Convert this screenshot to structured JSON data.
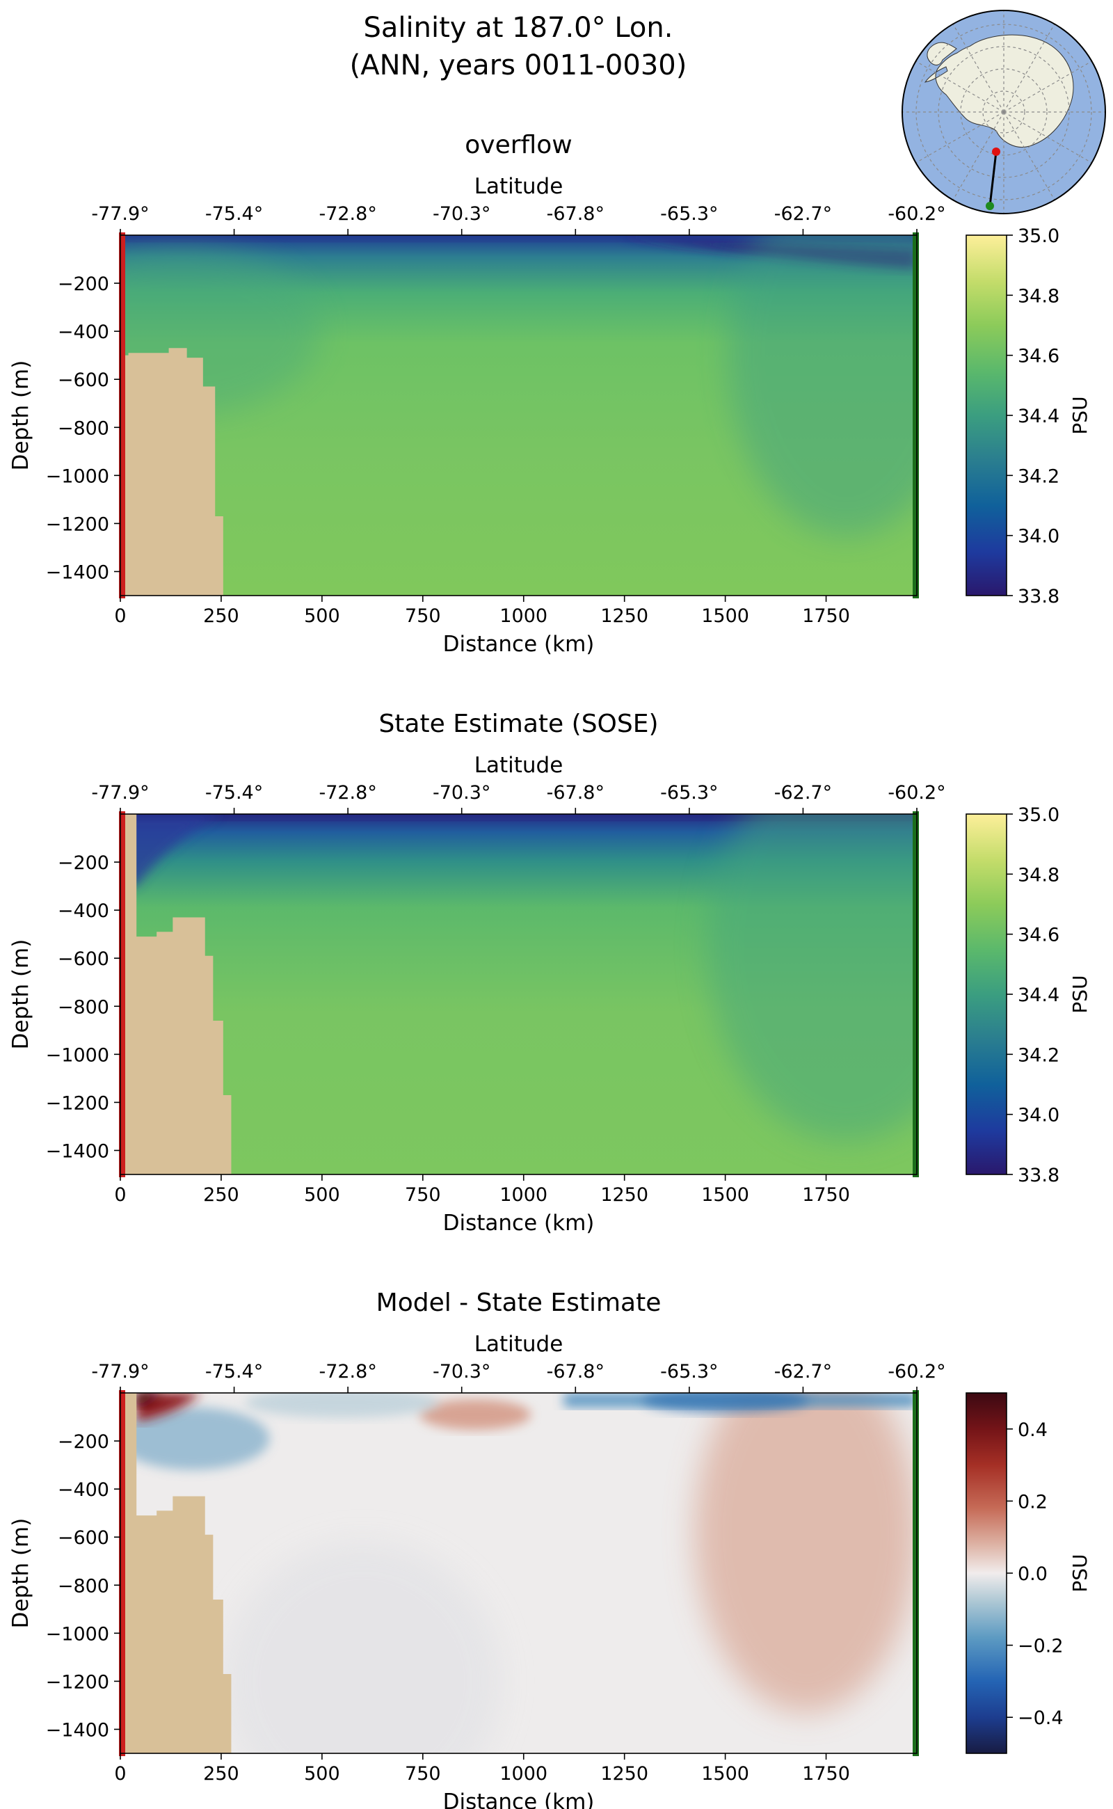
{
  "figure": {
    "title_line1": "Salinity at 187.0° Lon.",
    "title_line2": "(ANN, years 0011-0030)"
  },
  "colors": {
    "bathymetry": "#d8c098",
    "south_marker": "#cc1f1f",
    "north_marker": "#1b6e1b",
    "ocean_map": "#93b3e1",
    "land_map": "#eeeedf"
  },
  "chart_data": [
    {
      "type": "heatmap",
      "title": "overflow",
      "xlabel": "Distance (km)",
      "ylabel": "Depth (m)",
      "top_xlabel": "Latitude",
      "xlim": [
        0,
        1975
      ],
      "ylim": [
        -1500,
        0
      ],
      "xticks": [
        0,
        250,
        500,
        750,
        1000,
        1250,
        1500,
        1750
      ],
      "yticks": [
        -200,
        -400,
        -600,
        -800,
        -1000,
        -1200,
        -1400
      ],
      "lat_ticks": [
        "-77.9°",
        "-75.4°",
        "-72.8°",
        "-70.3°",
        "-67.8°",
        "-65.3°",
        "-62.7°",
        "-60.2°"
      ],
      "colorbar": {
        "label": "PSU",
        "colormap": "haline",
        "vmin": 33.8,
        "vmax": 35.0,
        "ticks": [
          "33.8",
          "34.0",
          "34.2",
          "34.4",
          "34.6",
          "34.8",
          "35.0"
        ]
      },
      "bathymetry": [
        [
          0,
          500
        ],
        [
          20,
          490
        ],
        [
          120,
          470
        ],
        [
          165,
          510
        ],
        [
          205,
          630
        ],
        [
          235,
          1170
        ],
        [
          255,
          1500
        ]
      ],
      "field_summary": "surface layer 33.8-34.2 PSU, freshest in the north at 1300-1975 km; interior 34.6-34.65 PSU"
    },
    {
      "type": "heatmap",
      "title": "State Estimate (SOSE)",
      "xlabel": "Distance (km)",
      "ylabel": "Depth (m)",
      "top_xlabel": "Latitude",
      "xlim": [
        0,
        1975
      ],
      "ylim": [
        -1500,
        0
      ],
      "xticks": [
        0,
        250,
        500,
        750,
        1000,
        1250,
        1500,
        1750
      ],
      "yticks": [
        -200,
        -400,
        -600,
        -800,
        -1000,
        -1200,
        -1400
      ],
      "lat_ticks": [
        "-77.9°",
        "-75.4°",
        "-72.8°",
        "-70.3°",
        "-67.8°",
        "-65.3°",
        "-62.7°",
        "-60.2°"
      ],
      "colorbar": {
        "label": "PSU",
        "colormap": "haline",
        "vmin": 33.8,
        "vmax": 35.0,
        "ticks": [
          "33.8",
          "34.0",
          "34.2",
          "34.4",
          "34.6",
          "34.8",
          "35.0"
        ]
      },
      "bathymetry": [
        [
          0,
          0
        ],
        [
          40,
          510
        ],
        [
          90,
          490
        ],
        [
          130,
          430
        ],
        [
          210,
          590
        ],
        [
          230,
          860
        ],
        [
          255,
          1170
        ],
        [
          275,
          1500
        ]
      ],
      "field_summary": "surface layer 33.8-34.3 PSU; interior 34.6-34.7 PSU"
    },
    {
      "type": "heatmap",
      "title": "Model - State Estimate",
      "xlabel": "Distance (km)",
      "ylabel": "Depth (m)",
      "top_xlabel": "Latitude",
      "xlim": [
        0,
        1975
      ],
      "ylim": [
        -1500,
        0
      ],
      "xticks": [
        0,
        250,
        500,
        750,
        1000,
        1250,
        1500,
        1750
      ],
      "yticks": [
        -200,
        -400,
        -600,
        -800,
        -1000,
        -1200,
        -1400
      ],
      "lat_ticks": [
        "-77.9°",
        "-75.4°",
        "-72.8°",
        "-70.3°",
        "-67.8°",
        "-65.3°",
        "-62.7°",
        "-60.2°"
      ],
      "colorbar": {
        "label": "PSU",
        "colormap": "balance",
        "vmin": -0.5,
        "vmax": 0.5,
        "ticks": [
          "−0.4",
          "−0.2",
          "0.0",
          "0.2",
          "0.4"
        ]
      },
      "bathymetry": [
        [
          0,
          0
        ],
        [
          40,
          510
        ],
        [
          90,
          490
        ],
        [
          130,
          430
        ],
        [
          210,
          590
        ],
        [
          230,
          860
        ],
        [
          255,
          1170
        ],
        [
          275,
          1500
        ]
      ],
      "field_summary": "+0.5 near coast at surface; -0.2 patch near 200 m; +0.1 near 800-1100 km at 100 m; -0.2 surface band 1100-1975 km; +0.1 to +0.15 body at 1550-1850 km, 200-900 m"
    }
  ],
  "inset_map": {
    "type": "south_polar_stereographic",
    "section_start_lat": -77.9,
    "section_end_lat": -60.2
  }
}
